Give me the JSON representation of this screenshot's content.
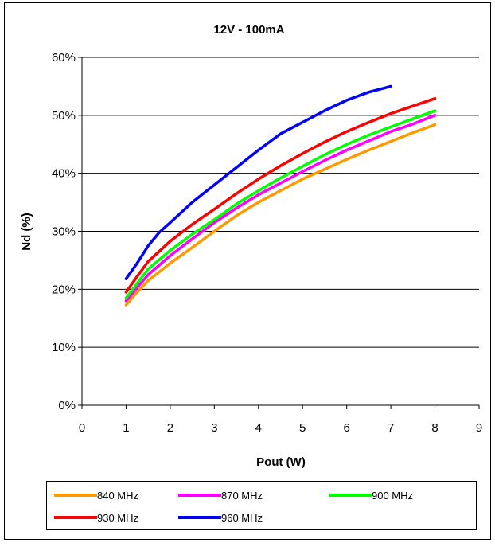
{
  "chart_data": {
    "type": "line",
    "title": "12V - 100mA",
    "xlabel": "Pout (W)",
    "ylabel": "Nd (%)",
    "xlim": [
      0,
      9
    ],
    "ylim": [
      0,
      60
    ],
    "x_ticks": [
      "0",
      "1",
      "2",
      "3",
      "4",
      "5",
      "6",
      "7",
      "8",
      "9"
    ],
    "y_ticks": [
      "0%",
      "10%",
      "20%",
      "30%",
      "40%",
      "50%",
      "60%"
    ],
    "grid": "horizontal",
    "legend_position": "bottom",
    "series": [
      {
        "name": "840 MHz",
        "color": "#FF9900",
        "x": [
          1.0,
          1.25,
          1.5,
          2.0,
          2.5,
          3.0,
          3.5,
          4.0,
          4.5,
          5.0,
          5.5,
          6.0,
          6.5,
          7.0,
          7.5,
          8.0
        ],
        "y": [
          17.3,
          19.5,
          21.5,
          24.5,
          27.2,
          30.0,
          32.7,
          35.0,
          37.0,
          39.0,
          40.7,
          42.4,
          44.0,
          45.5,
          47.0,
          48.4
        ]
      },
      {
        "name": "870 MHz",
        "color": "#FF00FF",
        "x": [
          1.0,
          1.25,
          1.5,
          2.0,
          2.5,
          3.0,
          3.5,
          4.0,
          4.5,
          5.0,
          5.5,
          6.0,
          6.5,
          7.0,
          7.5,
          8.0
        ],
        "y": [
          18.0,
          20.3,
          22.5,
          25.8,
          28.7,
          31.5,
          34.0,
          36.3,
          38.3,
          40.3,
          42.2,
          44.0,
          45.6,
          47.2,
          48.5,
          50.0
        ]
      },
      {
        "name": "900 MHz",
        "color": "#00FF00",
        "x": [
          1.0,
          1.25,
          1.5,
          2.0,
          2.5,
          3.0,
          3.5,
          4.0,
          4.5,
          5.0,
          5.5,
          6.0,
          6.5,
          7.0,
          7.5,
          8.0
        ],
        "y": [
          18.5,
          21.0,
          23.5,
          26.7,
          29.5,
          32.0,
          34.7,
          37.0,
          39.2,
          41.2,
          43.2,
          45.0,
          46.6,
          48.0,
          49.4,
          50.8
        ]
      },
      {
        "name": "930 MHz",
        "color": "#FF0000",
        "x": [
          1.0,
          1.25,
          1.5,
          2.0,
          2.5,
          3.0,
          3.5,
          4.0,
          4.5,
          5.0,
          5.5,
          6.0,
          6.5,
          7.0,
          7.5,
          8.0
        ],
        "y": [
          19.5,
          22.2,
          24.8,
          28.3,
          31.2,
          33.8,
          36.5,
          39.0,
          41.3,
          43.4,
          45.4,
          47.2,
          48.8,
          50.3,
          51.6,
          52.9
        ]
      },
      {
        "name": "960 MHz",
        "color": "#0000FF",
        "x": [
          1.0,
          1.25,
          1.5,
          1.75,
          2.0,
          2.5,
          3.0,
          3.5,
          4.0,
          4.5,
          5.0,
          5.5,
          6.0,
          6.5,
          7.0
        ],
        "y": [
          21.8,
          24.5,
          27.5,
          29.8,
          31.5,
          35.0,
          38.0,
          41.0,
          44.0,
          46.8,
          48.8,
          50.8,
          52.6,
          54.0,
          55.0
        ]
      }
    ]
  }
}
